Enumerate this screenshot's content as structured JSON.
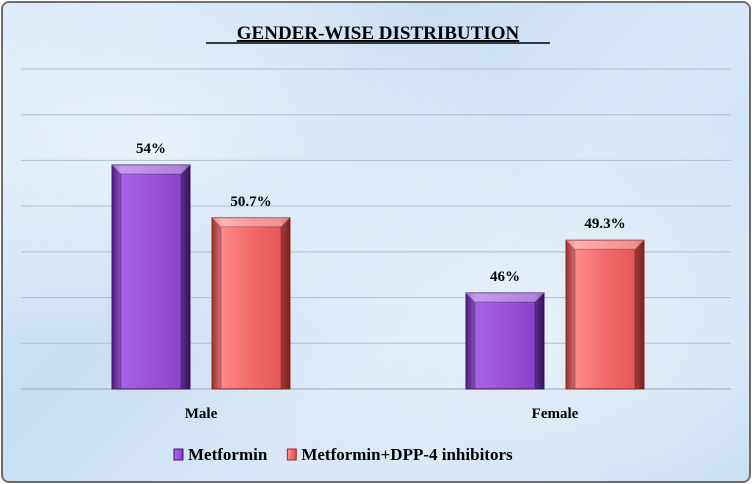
{
  "chart_data": {
    "type": "bar",
    "title": "GENDER-WISE DISTRIBUTION",
    "categories": [
      "Male",
      "Female"
    ],
    "series": [
      {
        "name": "Metformin",
        "values": [
          54,
          46
        ],
        "labels": [
          "54%",
          "46%"
        ],
        "color": "#9b4fd6"
      },
      {
        "name": "Metformin+DPP-4 inhibitors",
        "values": [
          50.7,
          49.3
        ],
        "labels": [
          "50.7%",
          "49.3%"
        ],
        "color": "#f06464"
      }
    ],
    "xlabel": "",
    "ylabel": "",
    "ylim": [
      40,
      60
    ],
    "grid": true,
    "legend": "bottom-center"
  }
}
